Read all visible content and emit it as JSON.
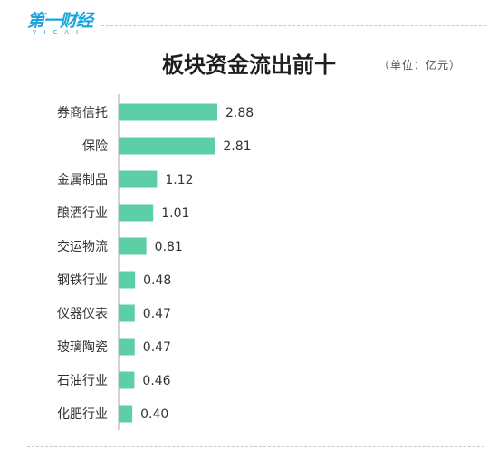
{
  "brand": {
    "name": "第一财经",
    "sub": "YICAI"
  },
  "unit_note": "（单位：亿元）",
  "chart_data": {
    "type": "bar",
    "orientation": "horizontal",
    "title": "板块资金流出前十",
    "categories": [
      "券商信托",
      "保险",
      "金属制品",
      "酿酒行业",
      "交运物流",
      "钢铁行业",
      "仪器仪表",
      "玻璃陶瓷",
      "石油行业",
      "化肥行业"
    ],
    "values": [
      2.88,
      2.81,
      1.12,
      1.01,
      0.81,
      0.48,
      0.47,
      0.47,
      0.46,
      0.4
    ],
    "value_labels": [
      "2.88",
      "2.81",
      "1.12",
      "1.01",
      "0.81",
      "0.48",
      "0.47",
      "0.47",
      "0.46",
      "0.40"
    ],
    "xlim": [
      0,
      2.88
    ],
    "bar_color": "#5ccfa6",
    "axis_color": "#aaaaaa",
    "grid": false,
    "legend": "none"
  }
}
